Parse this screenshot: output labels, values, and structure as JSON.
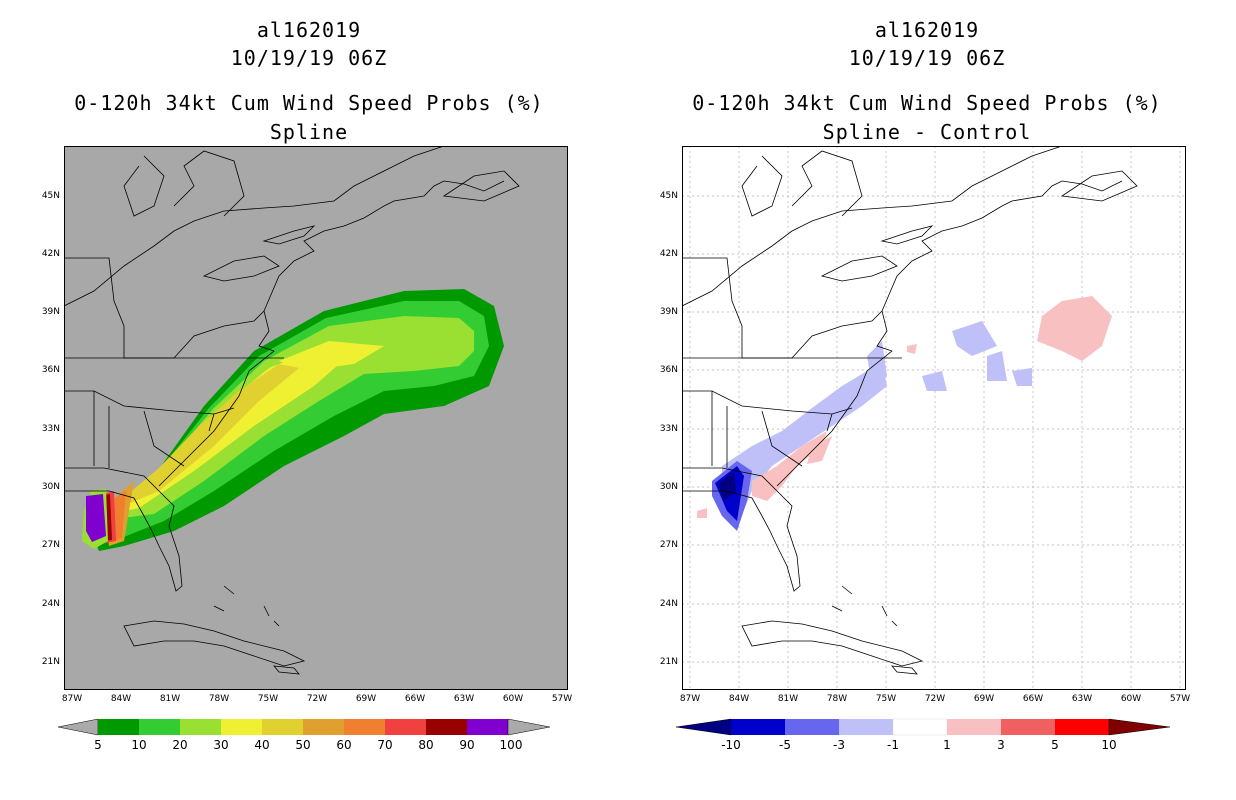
{
  "left_panel": {
    "title_lines": [
      "al162019",
      "10/19/19 06Z",
      "0-120h 34kt Cum Wind Speed Probs (%)",
      "Spline"
    ],
    "background_color": "#a8a8a8",
    "lat_labels": [
      "45N",
      "42N",
      "39N",
      "36N",
      "33N",
      "30N",
      "27N",
      "24N",
      "21N"
    ],
    "lon_labels": [
      "87W",
      "84W",
      "81W",
      "78W",
      "75W",
      "72W",
      "69W",
      "66W",
      "63W",
      "60W",
      "57W"
    ],
    "colorbar": {
      "labels": [
        "5",
        "10",
        "20",
        "30",
        "40",
        "50",
        "60",
        "70",
        "80",
        "90",
        "100"
      ],
      "colors": [
        "#009900",
        "#33cc33",
        "#99e033",
        "#f0f033",
        "#e0d030",
        "#e0a030",
        "#f08030",
        "#f04040",
        "#990000",
        "#8000d0"
      ],
      "end_color": "#aaaaaa"
    }
  },
  "right_panel": {
    "title_lines": [
      "al162019",
      "10/19/19 06Z",
      "0-120h 34kt Cum Wind Speed Probs (%)",
      "Spline - Control"
    ],
    "lat_labels": [
      "45N",
      "42N",
      "39N",
      "36N",
      "33N",
      "30N",
      "27N",
      "24N",
      "21N"
    ],
    "lon_labels": [
      "87W",
      "84W",
      "81W",
      "78W",
      "75W",
      "72W",
      "69W",
      "66W",
      "63W",
      "60W",
      "57W"
    ],
    "colorbar": {
      "labels": [
        "-10",
        "-5",
        "-3",
        "-1",
        "1",
        "3",
        "5",
        "10"
      ],
      "colors": [
        "#0000cc",
        "#6666ee",
        "#c0c0f8",
        "#ffffff",
        "#f8c0c0",
        "#f06060",
        "#ff0000"
      ],
      "low_end_color": "#000080",
      "high_end_color": "#800000"
    }
  }
}
